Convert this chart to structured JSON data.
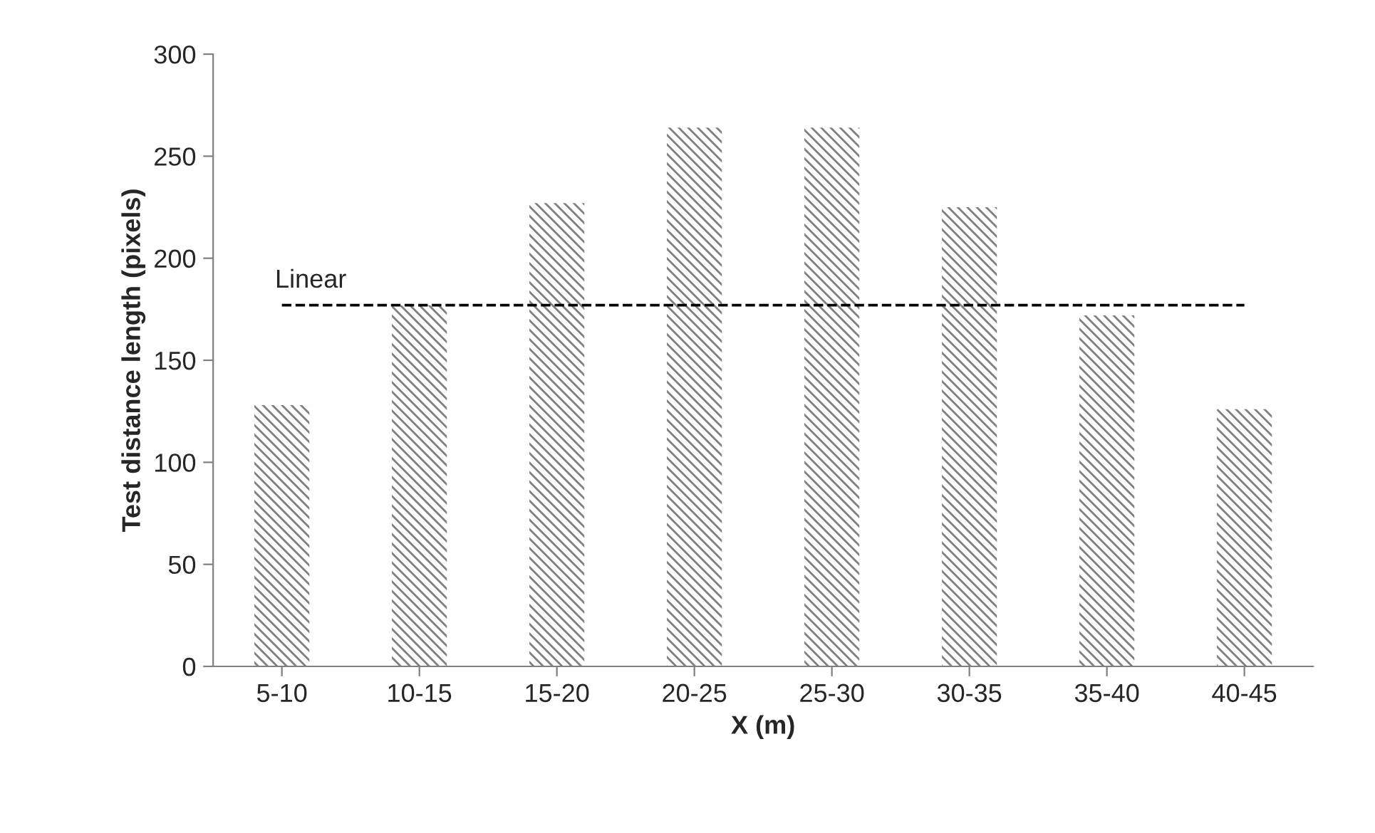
{
  "chart_data": {
    "type": "bar",
    "xlabel": "X (m)",
    "ylabel": "Test distance length (pixels)",
    "categories": [
      "5-10",
      "10-15",
      "15-20",
      "20-25",
      "25-30",
      "30-35",
      "35-40",
      "40-45"
    ],
    "series": [
      {
        "color": "#808080",
        "values": [
          128,
          177,
          227,
          264,
          264,
          225,
          172,
          126
        ]
      },
      {
        "type": "line",
        "name": "Linear",
        "color": "#000000",
        "line_style": "dashed",
        "marker": "none",
        "values": [
          177,
          177,
          177,
          177,
          177,
          177,
          177,
          177
        ]
      }
    ],
    "ylim": [
      0,
      300
    ],
    "yticks": [
      0,
      50,
      100,
      150,
      200,
      250,
      300
    ],
    "grid": false,
    "legend": false
  }
}
